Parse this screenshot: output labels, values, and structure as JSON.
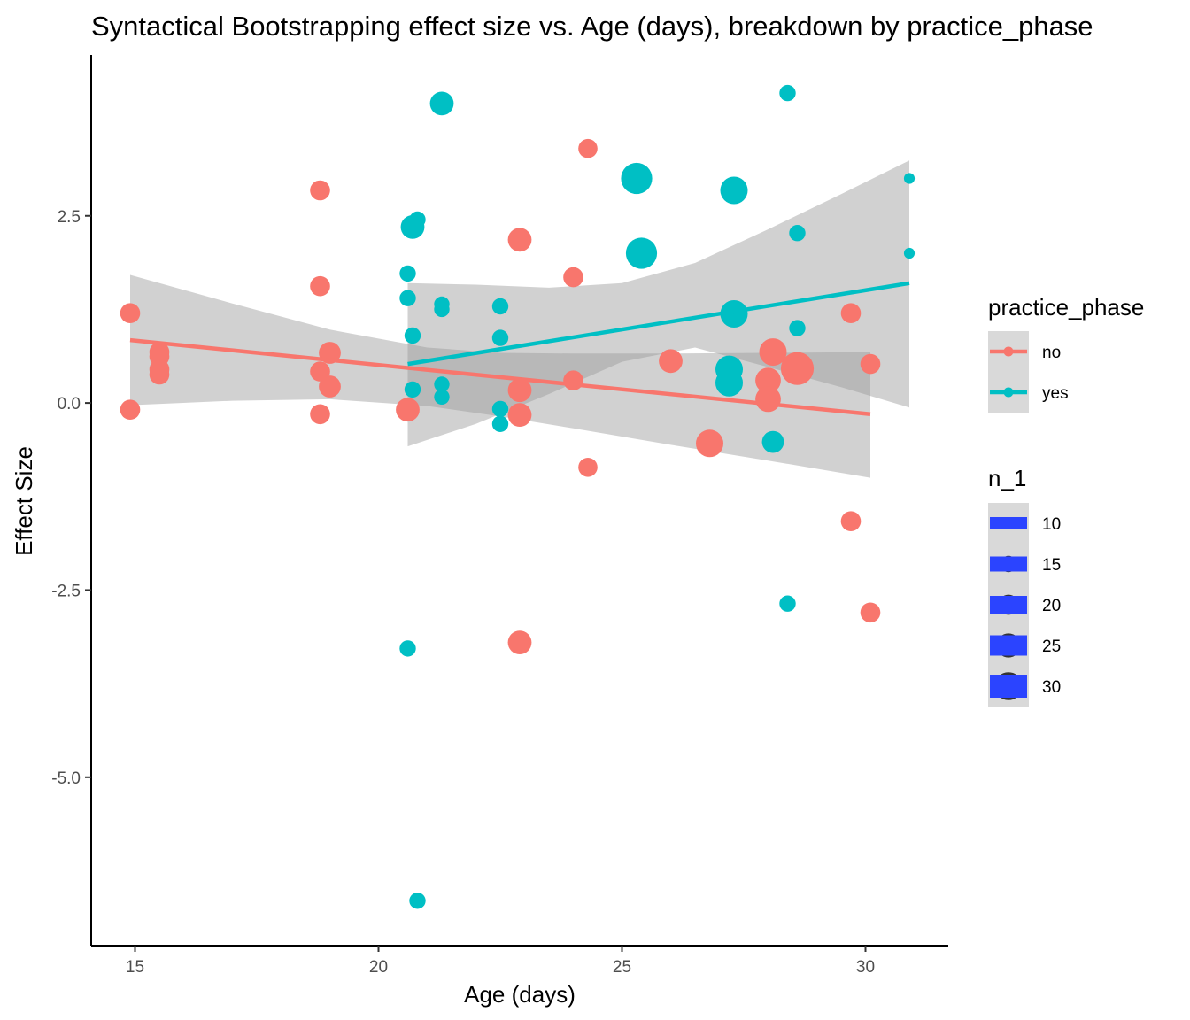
{
  "chart_data": {
    "type": "scatter",
    "title": "Syntactical Bootstrapping effect size vs. Age (days), breakdown by practice_phase",
    "xlabel": "Age (days)",
    "ylabel": "Effect Size",
    "xlim": [
      14.1,
      31.7
    ],
    "ylim": [
      -7.25,
      4.65
    ],
    "x_ticks": [
      {
        "value": 15,
        "label": "15"
      },
      {
        "value": 20,
        "label": "20"
      },
      {
        "value": 25,
        "label": "25"
      },
      {
        "value": 30,
        "label": "30"
      }
    ],
    "y_ticks": [
      {
        "value": 2.5,
        "label": "2.5"
      },
      {
        "value": 0,
        "label": "0.0"
      },
      {
        "value": -2.5,
        "label": "-2.5"
      },
      {
        "value": -5,
        "label": "-5.0"
      }
    ],
    "grid": false,
    "legend_position": "right",
    "color_legend": {
      "title": "practice_phase",
      "entries": [
        {
          "label": "no",
          "color": "#F8766D"
        },
        {
          "label": "yes",
          "color": "#00BFC4"
        }
      ]
    },
    "size_legend": {
      "title": "n_1",
      "entries": [
        {
          "label": "10",
          "value": 10
        },
        {
          "label": "15",
          "value": 15
        },
        {
          "label": "20",
          "value": 20
        },
        {
          "label": "25",
          "value": 25
        },
        {
          "label": "30",
          "value": 30
        }
      ]
    },
    "series": [
      {
        "name": "no",
        "color": "#F8766D",
        "points": [
          {
            "x": 14.9,
            "y": 1.2,
            "n": 16
          },
          {
            "x": 14.9,
            "y": -0.09,
            "n": 16
          },
          {
            "x": 15.5,
            "y": 0.68,
            "n": 16
          },
          {
            "x": 15.5,
            "y": 0.62,
            "n": 16
          },
          {
            "x": 15.5,
            "y": 0.45,
            "n": 16
          },
          {
            "x": 15.5,
            "y": 0.38,
            "n": 16
          },
          {
            "x": 18.8,
            "y": 2.84,
            "n": 16
          },
          {
            "x": 18.8,
            "y": 1.56,
            "n": 16
          },
          {
            "x": 18.8,
            "y": 0.42,
            "n": 16
          },
          {
            "x": 18.8,
            "y": -0.15,
            "n": 16
          },
          {
            "x": 19.0,
            "y": 0.67,
            "n": 18
          },
          {
            "x": 19.0,
            "y": 0.22,
            "n": 18
          },
          {
            "x": 20.6,
            "y": -0.09,
            "n": 20
          },
          {
            "x": 22.9,
            "y": 2.18,
            "n": 20
          },
          {
            "x": 22.9,
            "y": 0.17,
            "n": 20
          },
          {
            "x": 22.9,
            "y": -0.16,
            "n": 20
          },
          {
            "x": 22.9,
            "y": -3.2,
            "n": 20
          },
          {
            "x": 24.0,
            "y": 1.68,
            "n": 16
          },
          {
            "x": 24.0,
            "y": 0.3,
            "n": 16
          },
          {
            "x": 24.3,
            "y": 3.4,
            "n": 15
          },
          {
            "x": 24.3,
            "y": -0.86,
            "n": 15
          },
          {
            "x": 26.0,
            "y": 0.56,
            "n": 20
          },
          {
            "x": 26.8,
            "y": -0.54,
            "n": 24
          },
          {
            "x": 28.0,
            "y": 0.3,
            "n": 22
          },
          {
            "x": 28.0,
            "y": 0.05,
            "n": 22
          },
          {
            "x": 28.1,
            "y": 0.68,
            "n": 24
          },
          {
            "x": 28.6,
            "y": 0.46,
            "n": 30
          },
          {
            "x": 29.7,
            "y": 1.2,
            "n": 16
          },
          {
            "x": 29.7,
            "y": -1.58,
            "n": 16
          },
          {
            "x": 30.1,
            "y": 0.52,
            "n": 16
          },
          {
            "x": 30.1,
            "y": -2.8,
            "n": 16
          }
        ],
        "trend": {
          "x": [
            14.9,
            30.1
          ],
          "y": [
            0.84,
            -0.15
          ]
        },
        "ci_band": {
          "x": [
            14.9,
            17.0,
            19.0,
            21.0,
            22.5,
            24.0,
            26.0,
            28.0,
            30.1
          ],
          "upper": [
            1.71,
            1.33,
            0.98,
            0.74,
            0.67,
            0.66,
            0.66,
            0.67,
            0.68
          ],
          "lower": [
            -0.03,
            0.03,
            0.05,
            -0.04,
            -0.18,
            -0.34,
            -0.56,
            -0.77,
            -1.0
          ]
        }
      },
      {
        "name": "yes",
        "color": "#00BFC4",
        "points": [
          {
            "x": 20.6,
            "y": 1.73,
            "n": 12
          },
          {
            "x": 20.6,
            "y": 1.4,
            "n": 12
          },
          {
            "x": 20.6,
            "y": -3.28,
            "n": 12
          },
          {
            "x": 20.7,
            "y": 2.35,
            "n": 20
          },
          {
            "x": 20.7,
            "y": 0.9,
            "n": 12
          },
          {
            "x": 20.7,
            "y": 0.18,
            "n": 12
          },
          {
            "x": 20.8,
            "y": 2.45,
            "n": 12
          },
          {
            "x": 20.8,
            "y": -6.65,
            "n": 12
          },
          {
            "x": 21.3,
            "y": 4.0,
            "n": 20
          },
          {
            "x": 21.3,
            "y": 1.32,
            "n": 11
          },
          {
            "x": 21.3,
            "y": 1.25,
            "n": 11
          },
          {
            "x": 21.3,
            "y": 0.25,
            "n": 11
          },
          {
            "x": 21.3,
            "y": 0.08,
            "n": 11
          },
          {
            "x": 22.5,
            "y": 1.29,
            "n": 12
          },
          {
            "x": 22.5,
            "y": 0.87,
            "n": 12
          },
          {
            "x": 22.5,
            "y": -0.08,
            "n": 12
          },
          {
            "x": 22.5,
            "y": -0.28,
            "n": 12
          },
          {
            "x": 25.3,
            "y": 3.0,
            "n": 28
          },
          {
            "x": 25.4,
            "y": 2.0,
            "n": 28
          },
          {
            "x": 27.2,
            "y": 0.45,
            "n": 24
          },
          {
            "x": 27.2,
            "y": 0.27,
            "n": 24
          },
          {
            "x": 27.3,
            "y": 2.84,
            "n": 24
          },
          {
            "x": 27.3,
            "y": 1.19,
            "n": 24
          },
          {
            "x": 28.1,
            "y": -0.52,
            "n": 18
          },
          {
            "x": 28.4,
            "y": 4.14,
            "n": 12
          },
          {
            "x": 28.4,
            "y": -2.68,
            "n": 12
          },
          {
            "x": 28.6,
            "y": 2.27,
            "n": 12
          },
          {
            "x": 28.6,
            "y": 1.0,
            "n": 12
          },
          {
            "x": 30.9,
            "y": 3.0,
            "n": 6
          },
          {
            "x": 30.9,
            "y": 2.0,
            "n": 6
          }
        ],
        "trend": {
          "x": [
            20.6,
            30.9
          ],
          "y": [
            0.52,
            1.6
          ]
        },
        "ci_band": {
          "x": [
            20.6,
            22.0,
            23.5,
            25.0,
            26.5,
            28.0,
            29.5,
            30.9
          ],
          "upper": [
            1.6,
            1.58,
            1.54,
            1.6,
            1.87,
            2.32,
            2.79,
            3.24
          ],
          "lower": [
            -0.58,
            -0.28,
            0.12,
            0.55,
            0.74,
            0.48,
            0.21,
            -0.06
          ]
        }
      }
    ]
  }
}
